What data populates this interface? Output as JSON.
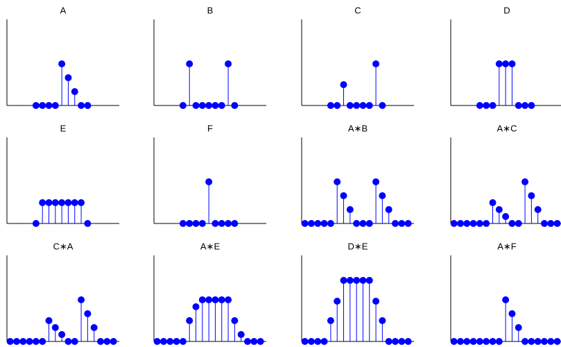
{
  "chart_data": [
    {
      "type": "stem",
      "title": "A",
      "color": "#0000ff",
      "xlim": [
        -4.5,
        12.9
      ],
      "ylim": [
        0,
        6.2
      ],
      "x": [
        0,
        1,
        2,
        3,
        4,
        5,
        6,
        7,
        8
      ],
      "values": [
        0,
        0,
        0,
        0,
        3,
        2,
        1,
        0,
        0
      ]
    },
    {
      "type": "stem",
      "title": "B",
      "color": "#0000ff",
      "xlim": [
        -4.5,
        12.9
      ],
      "ylim": [
        0,
        6.2
      ],
      "x": [
        0,
        1,
        2,
        3,
        4,
        5,
        6,
        7,
        8
      ],
      "values": [
        0,
        3,
        0,
        0,
        0,
        0,
        0,
        3,
        0
      ]
    },
    {
      "type": "stem",
      "title": "C",
      "color": "#0000ff",
      "xlim": [
        -4.5,
        12.9
      ],
      "ylim": [
        0,
        6.2
      ],
      "x": [
        0,
        1,
        2,
        3,
        4,
        5,
        6,
        7,
        8
      ],
      "values": [
        0,
        0,
        1.5,
        0,
        0,
        0,
        0,
        3,
        0
      ]
    },
    {
      "type": "stem",
      "title": "D",
      "color": "#0000ff",
      "xlim": [
        -4.5,
        12.9
      ],
      "ylim": [
        0,
        6.2
      ],
      "x": [
        0,
        1,
        2,
        3,
        4,
        5,
        6,
        7,
        8
      ],
      "values": [
        0,
        0,
        0,
        3,
        3,
        3,
        0,
        0,
        0
      ]
    },
    {
      "type": "stem",
      "title": "E",
      "color": "#0000ff",
      "xlim": [
        -4.5,
        12.9
      ],
      "ylim": [
        0,
        6.2
      ],
      "x": [
        0,
        1,
        2,
        3,
        4,
        5,
        6,
        7,
        8
      ],
      "values": [
        0,
        1.5,
        1.5,
        1.5,
        1.5,
        1.5,
        1.5,
        1.5,
        0
      ]
    },
    {
      "type": "stem",
      "title": "F",
      "color": "#0000ff",
      "xlim": [
        -4.5,
        12.9
      ],
      "ylim": [
        0,
        6.2
      ],
      "x": [
        0,
        1,
        2,
        3,
        4,
        5,
        6,
        7,
        8
      ],
      "values": [
        0,
        0,
        0,
        0,
        3,
        0,
        0,
        0,
        0
      ]
    },
    {
      "type": "stem",
      "title": "A∗B",
      "color": "#0000ff",
      "xlim": [
        -4.5,
        12.9
      ],
      "ylim": [
        0,
        6.2
      ],
      "x": [
        -4,
        -3,
        -2,
        -1,
        0,
        1,
        2,
        3,
        4,
        5,
        6,
        7,
        8,
        9,
        10,
        11,
        12
      ],
      "values": [
        0,
        0,
        0,
        0,
        0,
        3,
        2,
        1,
        0,
        0,
        0,
        3,
        2,
        1,
        0,
        0,
        0
      ]
    },
    {
      "type": "stem",
      "title": "A∗C",
      "color": "#0000ff",
      "xlim": [
        -4.5,
        12.9
      ],
      "ylim": [
        0,
        6.2
      ],
      "x": [
        -4,
        -3,
        -2,
        -1,
        0,
        1,
        2,
        3,
        4,
        5,
        6,
        7,
        8,
        9,
        10,
        11,
        12
      ],
      "values": [
        0,
        0,
        0,
        0,
        0,
        0,
        1.5,
        1,
        0.5,
        0,
        0,
        3,
        2,
        1,
        0,
        0,
        0
      ]
    },
    {
      "type": "stem",
      "title": "C∗A",
      "color": "#0000ff",
      "xlim": [
        -4.5,
        12.9
      ],
      "ylim": [
        0,
        6.2
      ],
      "x": [
        -4,
        -3,
        -2,
        -1,
        0,
        1,
        2,
        3,
        4,
        5,
        6,
        7,
        8,
        9,
        10,
        11,
        12
      ],
      "values": [
        0,
        0,
        0,
        0,
        0,
        0,
        1.5,
        1,
        0.5,
        0,
        0,
        3,
        2,
        1,
        0,
        0,
        0
      ]
    },
    {
      "type": "stem",
      "title": "A∗E",
      "color": "#0000ff",
      "xlim": [
        -4.5,
        12.9
      ],
      "ylim": [
        0,
        6.2
      ],
      "x": [
        -4,
        -3,
        -2,
        -1,
        0,
        1,
        2,
        3,
        4,
        5,
        6,
        7,
        8,
        9,
        10,
        11,
        12
      ],
      "values": [
        0,
        0,
        0,
        0,
        0,
        1.5,
        2.5,
        3,
        3,
        3,
        3,
        3,
        1.5,
        0.5,
        0,
        0,
        0
      ]
    },
    {
      "type": "stem",
      "title": "D∗E",
      "color": "#0000ff",
      "xlim": [
        -4.5,
        12.9
      ],
      "ylim": [
        0,
        6.2
      ],
      "x": [
        -4,
        -3,
        -2,
        -1,
        0,
        1,
        2,
        3,
        4,
        5,
        6,
        7,
        8,
        9,
        10,
        11,
        12
      ],
      "values": [
        0,
        0,
        0,
        0,
        1.5,
        2.9,
        4.4,
        4.4,
        4.4,
        4.4,
        4.4,
        2.9,
        1.5,
        0,
        0,
        0,
        0
      ]
    },
    {
      "type": "stem",
      "title": "A∗F",
      "color": "#0000ff",
      "xlim": [
        -4.5,
        12.9
      ],
      "ylim": [
        0,
        6.2
      ],
      "x": [
        -4,
        -3,
        -2,
        -1,
        0,
        1,
        2,
        3,
        4,
        5,
        6,
        7,
        8,
        9,
        10,
        11,
        12
      ],
      "values": [
        0,
        0,
        0,
        0,
        0,
        0,
        0,
        0,
        3,
        2,
        1,
        0,
        0,
        0,
        0,
        0,
        0
      ]
    }
  ]
}
